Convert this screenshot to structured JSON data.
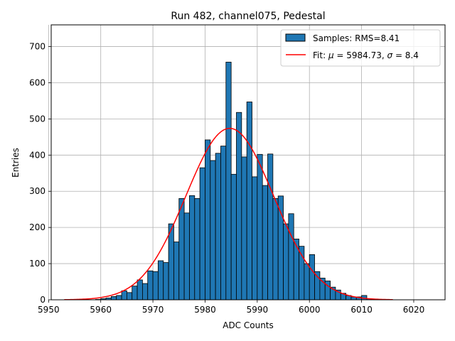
{
  "chart_data": {
    "type": "bar",
    "title": "Run 482, channel075, Pedestal",
    "xlabel": "ADC Counts",
    "ylabel": "Entries",
    "xlim": [
      5950.5,
      6026
    ],
    "ylim": [
      0,
      760
    ],
    "xticks": [
      5950,
      5960,
      5970,
      5980,
      5990,
      6000,
      6010,
      6020
    ],
    "yticks": [
      0,
      100,
      200,
      300,
      400,
      500,
      600,
      700
    ],
    "grid": true,
    "legend_position": "top-right",
    "bin_width": 1,
    "bin_start": 5953,
    "counts": [
      0,
      0,
      0,
      0,
      0,
      0,
      1,
      3,
      5,
      9,
      12,
      25,
      20,
      38,
      55,
      45,
      80,
      78,
      108,
      103,
      210,
      160,
      280,
      240,
      288,
      280,
      365,
      442,
      385,
      405,
      425,
      657,
      347,
      518,
      395,
      547,
      340,
      402,
      316,
      403,
      280,
      287,
      210,
      238,
      168,
      148,
      100,
      125,
      78,
      60,
      52,
      35,
      27,
      18,
      12,
      8,
      8,
      12,
      3,
      0,
      0,
      0,
      0
    ],
    "series": [
      {
        "name": "Samples: RMS=8.41",
        "kind": "histogram",
        "color": "#1f77b4",
        "edge": "#000000"
      },
      {
        "name": "Fit: μ = 5984.73, σ = 8.4",
        "kind": "gaussian",
        "mu": 5984.73,
        "sigma": 8.4,
        "peak": 474,
        "range": [
          5953,
          6016
        ],
        "color": "#ff0000"
      }
    ],
    "legend_label_samples": "Samples: RMS=8.41",
    "legend_fit_prefix": "Fit: ",
    "legend_fit_mu": "μ",
    "legend_fit_mid": " = 5984.73, ",
    "legend_fit_sigma": "σ",
    "legend_fit_suffix": " = 8.4"
  }
}
